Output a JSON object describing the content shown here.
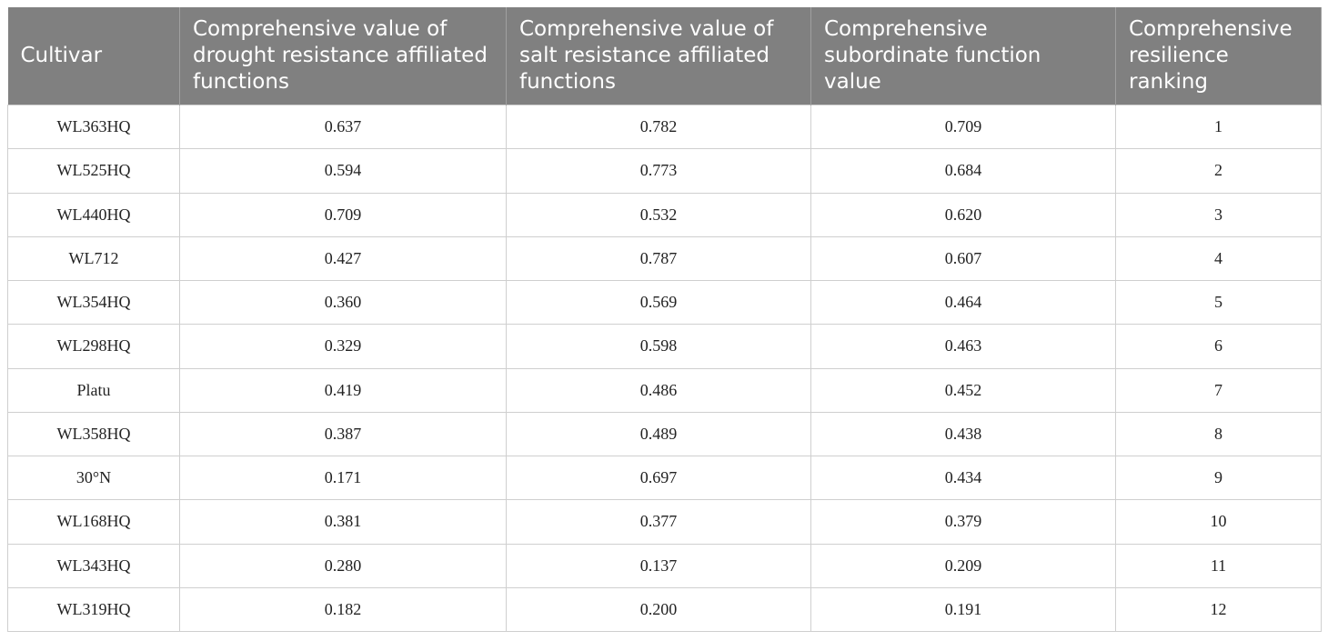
{
  "table": {
    "header": [
      "Cultivar",
      "Comprehensive value of drought resistance affiliated functions",
      "Comprehensive value of salt resistance affiliated functions",
      "Comprehensive subordinate function value",
      "Comprehensive resilience ranking"
    ],
    "rows": [
      [
        "WL363HQ",
        "0.637",
        "0.782",
        "0.709",
        "1"
      ],
      [
        "WL525HQ",
        "0.594",
        "0.773",
        "0.684",
        "2"
      ],
      [
        "WL440HQ",
        "0.709",
        "0.532",
        "0.620",
        "3"
      ],
      [
        "WL712",
        "0.427",
        "0.787",
        "0.607",
        "4"
      ],
      [
        "WL354HQ",
        "0.360",
        "0.569",
        "0.464",
        "5"
      ],
      [
        "WL298HQ",
        "0.329",
        "0.598",
        "0.463",
        "6"
      ],
      [
        "Platu",
        "0.419",
        "0.486",
        "0.452",
        "7"
      ],
      [
        "WL358HQ",
        "0.387",
        "0.489",
        "0.438",
        "8"
      ],
      [
        "30°N",
        "0.171",
        "0.697",
        "0.434",
        "9"
      ],
      [
        "WL168HQ",
        "0.381",
        "0.377",
        "0.379",
        "10"
      ],
      [
        "WL343HQ",
        "0.280",
        "0.137",
        "0.209",
        "11"
      ],
      [
        "WL319HQ",
        "0.182",
        "0.200",
        "0.191",
        "12"
      ]
    ]
  }
}
